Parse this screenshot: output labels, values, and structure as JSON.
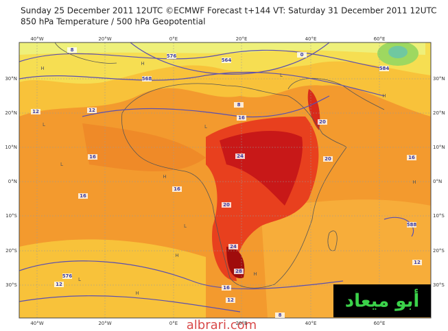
{
  "header": {
    "title_line1": "Sunday 25 December 2011 12UTC ©ECMWF Forecast t+144 VT: Saturday 31 December 2011 12UTC",
    "title_line2": "850 hPa Temperature / 500 hPa Geopotential"
  },
  "map": {
    "lon_labels": [
      "40°W",
      "20°W",
      "0°E",
      "20°E",
      "40°E",
      "60°E"
    ],
    "lat_labels": [
      "30°N",
      "20°N",
      "10°N",
      "0°N",
      "10°S",
      "20°S",
      "30°S"
    ],
    "contour_labels": [
      "8",
      "0",
      "564",
      "576",
      "568",
      "8",
      "12",
      "12",
      "16",
      "16",
      "16",
      "24",
      "20",
      "16",
      "20",
      "20",
      "24",
      "28",
      "16",
      "12",
      "8",
      "588",
      "584",
      "12",
      "16",
      "576",
      "12"
    ],
    "pressure_marks": [
      "H",
      "H",
      "L",
      "L",
      "L",
      "H",
      "H",
      "L",
      "H",
      "H",
      "L",
      "H",
      "L",
      "H"
    ]
  },
  "watermark": "albrari.com",
  "logo": "أبو ميعاد"
}
